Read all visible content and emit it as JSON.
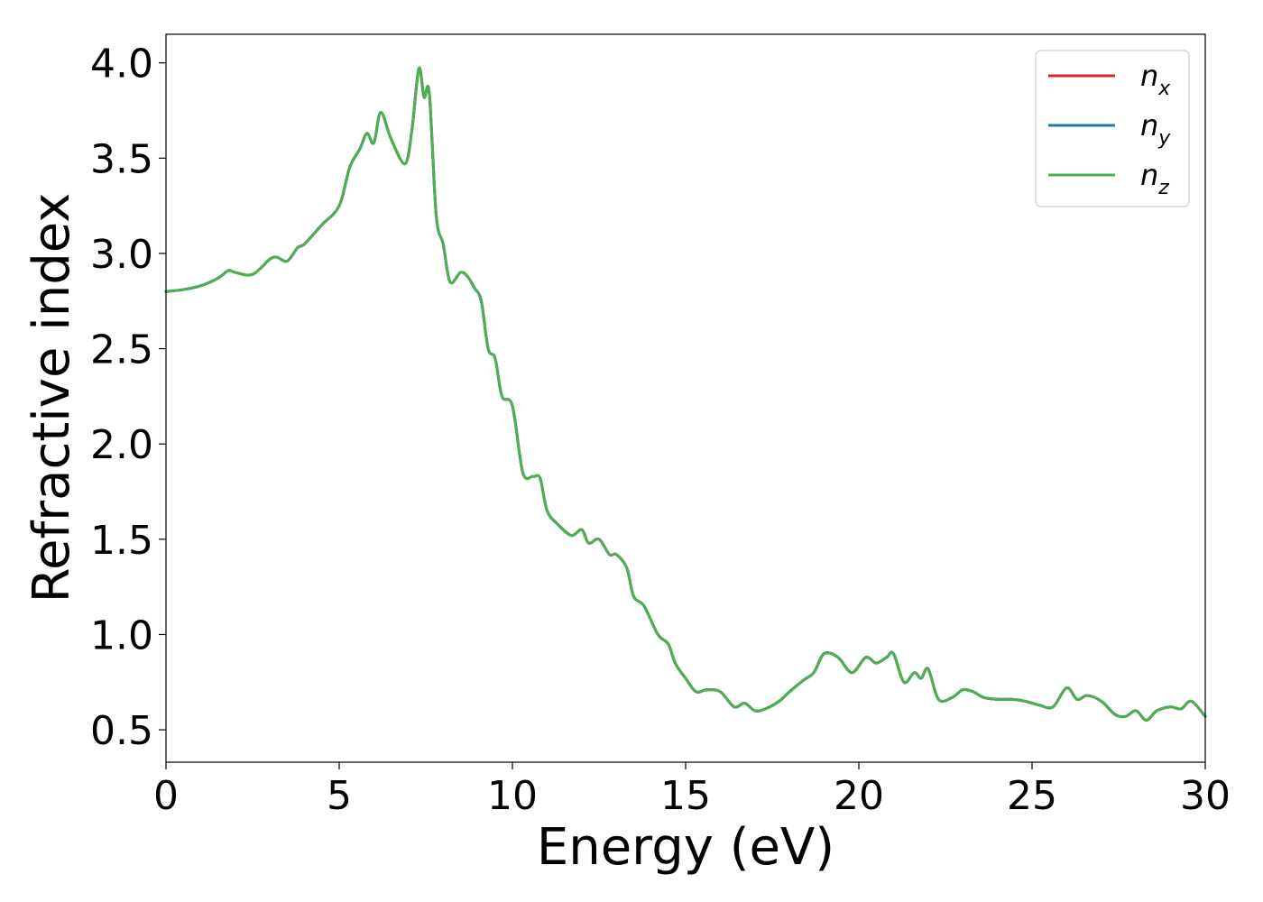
{
  "chart_data": {
    "type": "line",
    "title": "",
    "xlabel": "Energy (eV)",
    "ylabel": "Refractive index",
    "xlim": [
      0,
      30
    ],
    "ylim": [
      0.33,
      4.15
    ],
    "x_ticks": [
      0,
      5,
      10,
      15,
      20,
      25,
      30
    ],
    "x_tick_labels": [
      "0",
      "5",
      "10",
      "15",
      "20",
      "25",
      "30"
    ],
    "y_ticks": [
      0.5,
      1.0,
      1.5,
      2.0,
      2.5,
      3.0,
      3.5,
      4.0
    ],
    "y_tick_labels": [
      "0.5",
      "1.0",
      "1.5",
      "2.0",
      "2.5",
      "3.0",
      "3.5",
      "4.0"
    ],
    "grid": false,
    "legend_position": "top-right",
    "x": [
      0,
      0.5,
      1.0,
      1.5,
      1.8,
      2.0,
      2.5,
      3.0,
      3.2,
      3.5,
      3.8,
      4.0,
      4.5,
      5.0,
      5.3,
      5.6,
      5.8,
      6.0,
      6.2,
      6.5,
      6.9,
      7.1,
      7.3,
      7.45,
      7.6,
      7.8,
      8.0,
      8.2,
      8.5,
      8.7,
      8.9,
      9.1,
      9.3,
      9.5,
      9.7,
      10.0,
      10.3,
      10.6,
      10.8,
      11.0,
      11.3,
      11.7,
      12.0,
      12.2,
      12.5,
      12.8,
      13.0,
      13.3,
      13.5,
      13.8,
      14.2,
      14.5,
      14.7,
      15.0,
      15.3,
      15.6,
      16.0,
      16.4,
      16.7,
      17.0,
      17.3,
      17.7,
      18.0,
      18.4,
      18.7,
      19.0,
      19.4,
      19.8,
      20.2,
      20.5,
      20.8,
      21.0,
      21.3,
      21.6,
      21.8,
      22.0,
      22.3,
      22.7,
      23.0,
      23.3,
      23.6,
      24.0,
      24.4,
      24.8,
      25.2,
      25.6,
      26.0,
      26.3,
      26.6,
      27.0,
      27.4,
      27.7,
      28.0,
      28.3,
      28.6,
      29.0,
      29.3,
      29.6,
      30.0
    ],
    "series": [
      {
        "name": "n_x",
        "color": "#d62728",
        "values": [
          2.8,
          2.81,
          2.83,
          2.87,
          2.91,
          2.9,
          2.89,
          2.97,
          2.98,
          2.96,
          3.03,
          3.05,
          3.15,
          3.25,
          3.45,
          3.55,
          3.63,
          3.58,
          3.74,
          3.6,
          3.47,
          3.65,
          3.97,
          3.82,
          3.84,
          3.2,
          3.05,
          2.85,
          2.9,
          2.88,
          2.82,
          2.75,
          2.5,
          2.45,
          2.25,
          2.2,
          1.85,
          1.83,
          1.82,
          1.65,
          1.58,
          1.52,
          1.55,
          1.48,
          1.5,
          1.42,
          1.42,
          1.35,
          1.2,
          1.15,
          1.0,
          0.95,
          0.85,
          0.77,
          0.7,
          0.71,
          0.7,
          0.62,
          0.64,
          0.6,
          0.61,
          0.65,
          0.7,
          0.76,
          0.8,
          0.9,
          0.88,
          0.8,
          0.88,
          0.85,
          0.88,
          0.9,
          0.75,
          0.8,
          0.77,
          0.82,
          0.66,
          0.67,
          0.71,
          0.7,
          0.67,
          0.66,
          0.66,
          0.65,
          0.63,
          0.62,
          0.72,
          0.66,
          0.68,
          0.65,
          0.58,
          0.57,
          0.6,
          0.55,
          0.6,
          0.62,
          0.61,
          0.65,
          0.57
        ]
      },
      {
        "name": "n_y",
        "color": "#1f77b4",
        "values": [
          2.8,
          2.81,
          2.83,
          2.87,
          2.91,
          2.9,
          2.89,
          2.97,
          2.98,
          2.96,
          3.03,
          3.05,
          3.15,
          3.25,
          3.45,
          3.55,
          3.63,
          3.58,
          3.74,
          3.6,
          3.47,
          3.65,
          3.97,
          3.82,
          3.84,
          3.2,
          3.05,
          2.85,
          2.9,
          2.88,
          2.82,
          2.75,
          2.5,
          2.45,
          2.25,
          2.2,
          1.85,
          1.83,
          1.82,
          1.65,
          1.58,
          1.52,
          1.55,
          1.48,
          1.5,
          1.42,
          1.42,
          1.35,
          1.2,
          1.15,
          1.0,
          0.95,
          0.85,
          0.77,
          0.7,
          0.71,
          0.7,
          0.62,
          0.64,
          0.6,
          0.61,
          0.65,
          0.7,
          0.76,
          0.8,
          0.9,
          0.88,
          0.8,
          0.88,
          0.85,
          0.88,
          0.9,
          0.75,
          0.8,
          0.77,
          0.82,
          0.66,
          0.67,
          0.71,
          0.7,
          0.67,
          0.66,
          0.66,
          0.65,
          0.63,
          0.62,
          0.72,
          0.66,
          0.68,
          0.65,
          0.58,
          0.57,
          0.6,
          0.55,
          0.6,
          0.62,
          0.61,
          0.65,
          0.57
        ]
      },
      {
        "name": "n_z",
        "color": "#4caf50",
        "values": [
          2.8,
          2.81,
          2.83,
          2.87,
          2.91,
          2.9,
          2.89,
          2.97,
          2.98,
          2.96,
          3.03,
          3.05,
          3.15,
          3.25,
          3.45,
          3.55,
          3.63,
          3.58,
          3.74,
          3.6,
          3.47,
          3.65,
          3.97,
          3.82,
          3.84,
          3.2,
          3.05,
          2.85,
          2.9,
          2.88,
          2.82,
          2.75,
          2.5,
          2.45,
          2.25,
          2.2,
          1.85,
          1.83,
          1.82,
          1.65,
          1.58,
          1.52,
          1.55,
          1.48,
          1.5,
          1.42,
          1.42,
          1.35,
          1.2,
          1.15,
          1.0,
          0.95,
          0.85,
          0.77,
          0.7,
          0.71,
          0.7,
          0.62,
          0.64,
          0.6,
          0.61,
          0.65,
          0.7,
          0.76,
          0.8,
          0.9,
          0.88,
          0.8,
          0.88,
          0.85,
          0.88,
          0.9,
          0.75,
          0.8,
          0.77,
          0.82,
          0.66,
          0.67,
          0.71,
          0.7,
          0.67,
          0.66,
          0.66,
          0.65,
          0.63,
          0.62,
          0.72,
          0.66,
          0.68,
          0.65,
          0.58,
          0.57,
          0.6,
          0.55,
          0.6,
          0.62,
          0.61,
          0.65,
          0.57
        ]
      }
    ],
    "legend": [
      {
        "base": "n",
        "sub": "x",
        "color": "#d62728"
      },
      {
        "base": "n",
        "sub": "y",
        "color": "#1f77b4"
      },
      {
        "base": "n",
        "sub": "z",
        "color": "#4caf50"
      }
    ]
  }
}
